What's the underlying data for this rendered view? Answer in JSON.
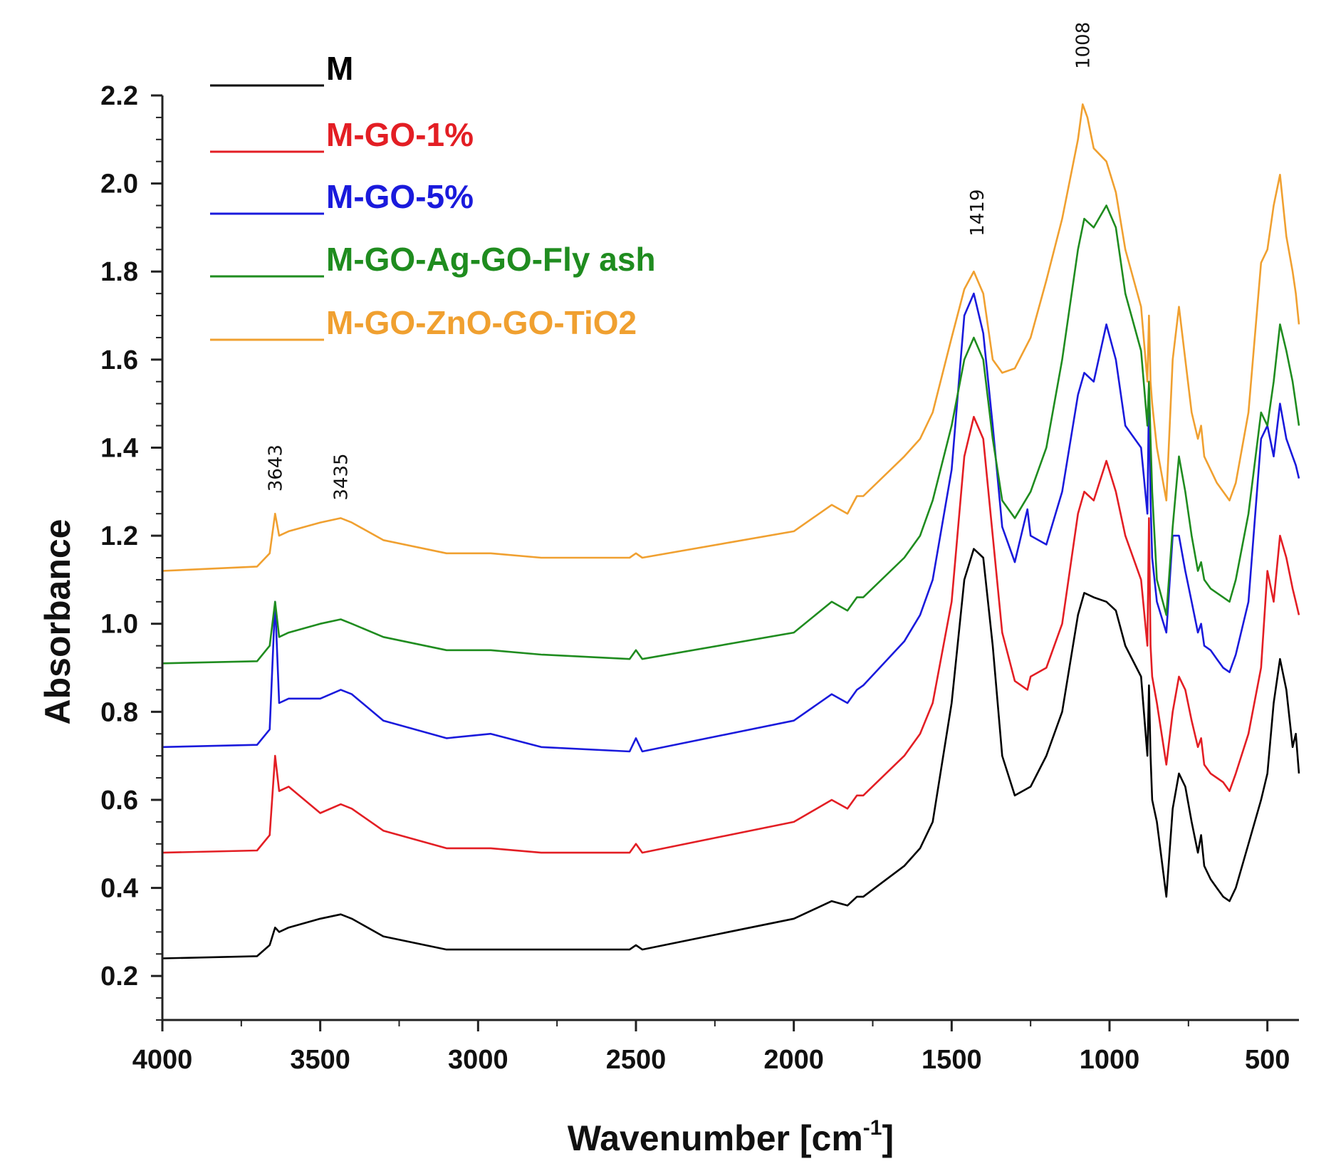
{
  "chart_data": {
    "type": "line",
    "title": "",
    "xlabel": "Wavenumber [cm",
    "xlabel_superscript": "-1",
    "xlabel_suffix": "]",
    "ylabel": "Absorbance",
    "xlim": [
      4000,
      400
    ],
    "ylim": [
      0.1,
      2.2
    ],
    "x_reversed": true,
    "x_ticks": [
      4000,
      3500,
      3000,
      2500,
      2000,
      1500,
      1000,
      500
    ],
    "x_tick_labels": [
      "4000",
      "3500",
      "3000",
      "2500",
      "2000",
      "1500",
      "1000",
      "500"
    ],
    "y_ticks": [
      0.2,
      0.4,
      0.6,
      0.8,
      1.0,
      1.2,
      1.4,
      1.6,
      1.8,
      2.0,
      2.2
    ],
    "y_tick_labels": [
      "0.2",
      "0.4",
      "0.6",
      "0.8",
      "1.0",
      "1.2",
      "1.4",
      "1.6",
      "1.8",
      "2.0",
      "2.2"
    ],
    "grid": false,
    "legend_position": "top-left",
    "peak_annotations": [
      {
        "label": "3643",
        "x": 3643,
        "y": 1.3
      },
      {
        "label": "3435",
        "x": 3435,
        "y": 1.28
      },
      {
        "label": "1419",
        "x": 1419,
        "y": 1.88
      },
      {
        "label": "1008",
        "x": 1085,
        "y": 2.26
      }
    ],
    "series": [
      {
        "name": "M",
        "color": "#000000",
        "x": [
          4000,
          3700,
          3660,
          3643,
          3630,
          3600,
          3500,
          3435,
          3400,
          3300,
          3100,
          2800,
          2520,
          2500,
          2480,
          2000,
          1880,
          1830,
          1800,
          1780,
          1650,
          1600,
          1560,
          1500,
          1460,
          1430,
          1400,
          1370,
          1340,
          1300,
          1250,
          1200,
          1150,
          1100,
          1080,
          1050,
          1010,
          980,
          950,
          900,
          880,
          875,
          870,
          865,
          850,
          820,
          800,
          780,
          760,
          740,
          720,
          710,
          700,
          680,
          660,
          640,
          620,
          600,
          560,
          520,
          500,
          480,
          460,
          440,
          420,
          410,
          400
        ],
        "y": [
          0.24,
          0.245,
          0.27,
          0.31,
          0.3,
          0.31,
          0.33,
          0.34,
          0.33,
          0.29,
          0.26,
          0.26,
          0.26,
          0.27,
          0.26,
          0.33,
          0.37,
          0.36,
          0.38,
          0.38,
          0.45,
          0.49,
          0.55,
          0.82,
          1.1,
          1.17,
          1.15,
          0.95,
          0.7,
          0.61,
          0.63,
          0.7,
          0.8,
          1.02,
          1.07,
          1.06,
          1.05,
          1.03,
          0.95,
          0.88,
          0.7,
          0.86,
          0.7,
          0.6,
          0.55,
          0.38,
          0.58,
          0.66,
          0.63,
          0.55,
          0.48,
          0.52,
          0.45,
          0.42,
          0.4,
          0.38,
          0.37,
          0.4,
          0.5,
          0.6,
          0.66,
          0.82,
          0.92,
          0.85,
          0.72,
          0.75,
          0.66
        ]
      },
      {
        "name": "M-GO-1%",
        "color": "#e31e24",
        "x": [
          4000,
          3700,
          3660,
          3643,
          3630,
          3600,
          3500,
          3435,
          3400,
          3300,
          3100,
          2960,
          2800,
          2520,
          2500,
          2480,
          2000,
          1880,
          1830,
          1800,
          1780,
          1650,
          1600,
          1560,
          1500,
          1460,
          1430,
          1400,
          1370,
          1340,
          1300,
          1260,
          1250,
          1200,
          1150,
          1100,
          1080,
          1050,
          1010,
          980,
          950,
          900,
          880,
          875,
          870,
          865,
          850,
          820,
          800,
          780,
          760,
          740,
          720,
          710,
          700,
          680,
          660,
          640,
          620,
          600,
          560,
          520,
          500,
          480,
          460,
          440,
          420,
          410,
          400
        ],
        "y": [
          0.48,
          0.485,
          0.52,
          0.7,
          0.62,
          0.63,
          0.57,
          0.59,
          0.58,
          0.53,
          0.49,
          0.49,
          0.48,
          0.48,
          0.5,
          0.48,
          0.55,
          0.6,
          0.58,
          0.61,
          0.61,
          0.7,
          0.75,
          0.82,
          1.05,
          1.38,
          1.47,
          1.42,
          1.2,
          0.98,
          0.87,
          0.85,
          0.88,
          0.9,
          1.0,
          1.25,
          1.3,
          1.28,
          1.37,
          1.3,
          1.2,
          1.1,
          0.95,
          1.24,
          0.95,
          0.88,
          0.82,
          0.68,
          0.8,
          0.88,
          0.85,
          0.78,
          0.72,
          0.74,
          0.68,
          0.66,
          0.65,
          0.64,
          0.62,
          0.66,
          0.75,
          0.9,
          1.12,
          1.05,
          1.2,
          1.15,
          1.08,
          1.05,
          1.02
        ]
      },
      {
        "name": "M-GO-5%",
        "color": "#1a1adc",
        "x": [
          4000,
          3700,
          3660,
          3643,
          3630,
          3600,
          3500,
          3435,
          3400,
          3300,
          3100,
          2960,
          2800,
          2520,
          2500,
          2480,
          2000,
          1880,
          1830,
          1800,
          1780,
          1650,
          1600,
          1560,
          1500,
          1460,
          1430,
          1400,
          1370,
          1340,
          1300,
          1260,
          1250,
          1200,
          1150,
          1100,
          1080,
          1050,
          1010,
          980,
          950,
          900,
          880,
          875,
          870,
          865,
          850,
          820,
          800,
          780,
          760,
          740,
          720,
          710,
          700,
          680,
          660,
          640,
          620,
          600,
          560,
          520,
          500,
          480,
          460,
          440,
          420,
          410,
          400
        ],
        "y": [
          0.72,
          0.725,
          0.76,
          1.05,
          0.82,
          0.83,
          0.83,
          0.85,
          0.84,
          0.78,
          0.74,
          0.75,
          0.72,
          0.71,
          0.74,
          0.71,
          0.78,
          0.84,
          0.82,
          0.85,
          0.86,
          0.96,
          1.02,
          1.1,
          1.35,
          1.7,
          1.75,
          1.66,
          1.45,
          1.22,
          1.14,
          1.26,
          1.2,
          1.18,
          1.3,
          1.52,
          1.57,
          1.55,
          1.68,
          1.6,
          1.45,
          1.4,
          1.25,
          1.53,
          1.28,
          1.15,
          1.05,
          0.98,
          1.2,
          1.2,
          1.12,
          1.05,
          0.98,
          1.0,
          0.95,
          0.94,
          0.92,
          0.9,
          0.89,
          0.93,
          1.05,
          1.42,
          1.45,
          1.38,
          1.5,
          1.42,
          1.38,
          1.36,
          1.33
        ]
      },
      {
        "name": "M-GO-Ag-GO-Fly ash",
        "color": "#1f8c1f",
        "x": [
          4000,
          3700,
          3660,
          3643,
          3630,
          3600,
          3500,
          3435,
          3400,
          3300,
          3100,
          2960,
          2800,
          2520,
          2500,
          2480,
          2000,
          1880,
          1830,
          1800,
          1780,
          1650,
          1600,
          1560,
          1500,
          1460,
          1430,
          1400,
          1370,
          1340,
          1300,
          1250,
          1200,
          1150,
          1100,
          1080,
          1050,
          1010,
          980,
          950,
          900,
          880,
          875,
          870,
          865,
          850,
          820,
          800,
          780,
          760,
          740,
          720,
          710,
          700,
          680,
          660,
          640,
          620,
          600,
          560,
          520,
          500,
          480,
          460,
          440,
          420,
          410,
          400
        ],
        "y": [
          0.91,
          0.915,
          0.95,
          1.05,
          0.97,
          0.98,
          1.0,
          1.01,
          1.0,
          0.97,
          0.94,
          0.94,
          0.93,
          0.92,
          0.94,
          0.92,
          0.98,
          1.05,
          1.03,
          1.06,
          1.06,
          1.15,
          1.2,
          1.28,
          1.45,
          1.6,
          1.65,
          1.6,
          1.42,
          1.28,
          1.24,
          1.3,
          1.4,
          1.6,
          1.85,
          1.92,
          1.9,
          1.95,
          1.9,
          1.75,
          1.62,
          1.45,
          1.55,
          1.42,
          1.3,
          1.1,
          1.02,
          1.22,
          1.38,
          1.3,
          1.2,
          1.12,
          1.14,
          1.1,
          1.08,
          1.07,
          1.06,
          1.05,
          1.1,
          1.25,
          1.48,
          1.45,
          1.55,
          1.68,
          1.62,
          1.55,
          1.5,
          1.45
        ]
      },
      {
        "name": "M-GO-ZnO-GO-TiO2",
        "color": "#f0a030",
        "x": [
          4000,
          3700,
          3660,
          3643,
          3630,
          3600,
          3500,
          3435,
          3400,
          3300,
          3100,
          2960,
          2800,
          2520,
          2500,
          2480,
          2000,
          1880,
          1830,
          1800,
          1780,
          1650,
          1600,
          1560,
          1500,
          1460,
          1430,
          1400,
          1370,
          1340,
          1300,
          1250,
          1200,
          1150,
          1100,
          1085,
          1070,
          1050,
          1010,
          980,
          950,
          900,
          880,
          875,
          870,
          865,
          850,
          820,
          800,
          780,
          760,
          740,
          720,
          710,
          700,
          680,
          660,
          640,
          620,
          600,
          560,
          520,
          500,
          480,
          460,
          440,
          420,
          410,
          400
        ],
        "y": [
          1.12,
          1.13,
          1.16,
          1.25,
          1.2,
          1.21,
          1.23,
          1.24,
          1.23,
          1.19,
          1.16,
          1.16,
          1.15,
          1.15,
          1.16,
          1.15,
          1.21,
          1.27,
          1.25,
          1.29,
          1.29,
          1.38,
          1.42,
          1.48,
          1.65,
          1.76,
          1.8,
          1.75,
          1.6,
          1.57,
          1.58,
          1.65,
          1.78,
          1.92,
          2.1,
          2.18,
          2.15,
          2.08,
          2.05,
          1.98,
          1.85,
          1.72,
          1.55,
          1.7,
          1.55,
          1.5,
          1.4,
          1.28,
          1.6,
          1.72,
          1.6,
          1.48,
          1.42,
          1.45,
          1.38,
          1.35,
          1.32,
          1.3,
          1.28,
          1.32,
          1.48,
          1.82,
          1.85,
          1.95,
          2.02,
          1.88,
          1.8,
          1.75,
          1.68
        ]
      }
    ]
  }
}
